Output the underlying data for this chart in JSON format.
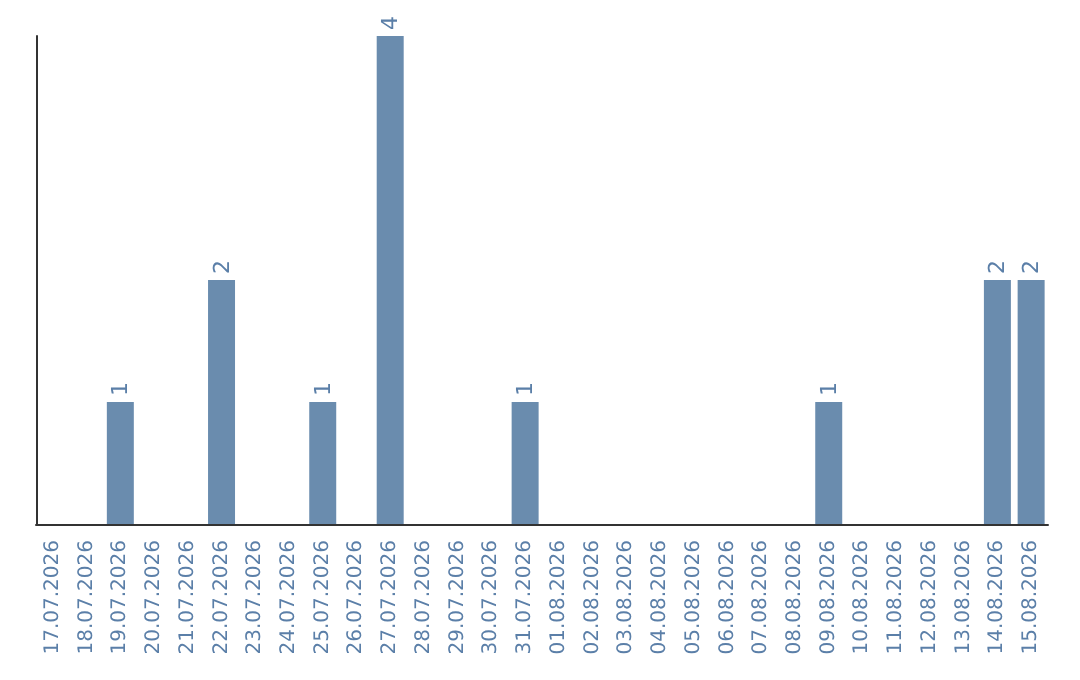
{
  "chart_data": {
    "type": "bar",
    "categories": [
      "17.07.2026",
      "18.07.2026",
      "19.07.2026",
      "20.07.2026",
      "21.07.2026",
      "22.07.2026",
      "23.07.2026",
      "24.07.2026",
      "25.07.2026",
      "26.07.2026",
      "27.07.2026",
      "28.07.2026",
      "29.07.2026",
      "30.07.2026",
      "31.07.2026",
      "01.08.2026",
      "02.08.2026",
      "03.08.2026",
      "04.08.2026",
      "05.08.2026",
      "06.08.2026",
      "07.08.2026",
      "08.08.2026",
      "09.08.2026",
      "10.08.2026",
      "11.08.2026",
      "12.08.2026",
      "13.08.2026",
      "14.08.2026",
      "15.08.2026"
    ],
    "values": [
      0,
      0,
      1,
      0,
      0,
      2,
      0,
      0,
      1,
      0,
      4,
      0,
      0,
      0,
      1,
      0,
      0,
      0,
      0,
      0,
      0,
      0,
      0,
      1,
      0,
      0,
      0,
      0,
      2,
      2
    ],
    "value_labels": [
      null,
      null,
      "1",
      null,
      null,
      "2",
      null,
      null,
      "1",
      null,
      "4",
      null,
      null,
      null,
      "1",
      null,
      null,
      null,
      null,
      null,
      null,
      null,
      null,
      "1",
      null,
      null,
      null,
      null,
      "2",
      "2"
    ],
    "color": "#6a8cae"
  }
}
